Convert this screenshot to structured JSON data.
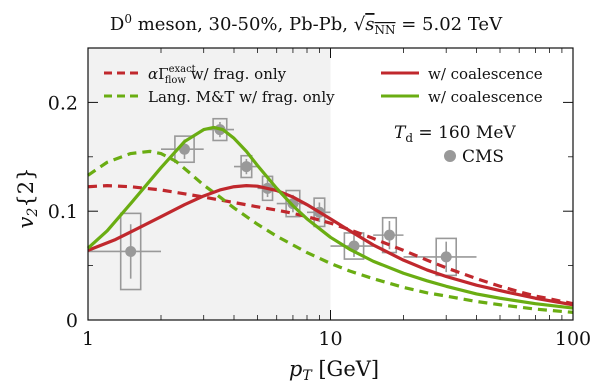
{
  "chart_data": {
    "type": "line",
    "title": "D⁰ meson, 30-50%, Pb-Pb, √sNN = 5.02 TeV",
    "title_parts": {
      "species": "D",
      "species_sup": "0",
      "rest": " meson, 30-50%, Pb-Pb, ",
      "sqrt_sym": "√",
      "s_label": "s",
      "s_sub": "NN",
      "energy": " = 5.02 TeV"
    },
    "xlabel": "p",
    "xlabel_sub": "T",
    "xlabel_unit": " [GeV]",
    "ylabel": "v",
    "ylabel_sub": "2",
    "ylabel_rest": "{2}",
    "xscale": "log",
    "xlim": [
      1,
      100
    ],
    "ylim": [
      0,
      0.25
    ],
    "xticks": [
      {
        "value": 1,
        "label": "1"
      },
      {
        "value": 10,
        "label": "10"
      },
      {
        "value": 100,
        "label": "100"
      }
    ],
    "yticks": [
      {
        "value": 0,
        "label": "0"
      },
      {
        "value": 0.1,
        "label": "0.1"
      },
      {
        "value": 0.2,
        "label": "0.2"
      }
    ],
    "grid": false,
    "shaded_region": {
      "x": [
        1,
        10
      ],
      "color": "#f2f2f2"
    },
    "annotation": "T_d = 160 MeV",
    "annotation_parts": {
      "t": "T",
      "sub": "d",
      "rest": " = 160 MeV"
    },
    "legend": {
      "placement": "top",
      "entries": [
        {
          "series": 0,
          "prefix": "α",
          "Gamma": "Γ",
          "sup": "exact",
          "sub": "flow",
          "suffix": " w/ frag. only"
        },
        {
          "series": 1,
          "text": "Lang. M&T w/ frag. only"
        },
        {
          "series": 2,
          "text": "w/ coalescence"
        },
        {
          "series": 3,
          "text": "w/ coalescence"
        },
        {
          "series": 4,
          "text": "CMS"
        }
      ]
    },
    "colors": {
      "red": "#c0282d",
      "green": "#6aad12",
      "data": "#999999"
    },
    "series": [
      {
        "name": "αΓ^exact_flow w/ frag. only",
        "style": "dashed",
        "color": "#c0282d",
        "x": [
          1,
          1.2,
          1.5,
          2,
          2.5,
          3,
          4,
          5,
          6,
          7,
          8,
          10,
          12,
          15,
          20,
          25,
          30,
          40,
          50,
          60,
          70,
          80,
          100
        ],
        "y": [
          0.1225,
          0.1235,
          0.1225,
          0.1195,
          0.116,
          0.113,
          0.108,
          0.104,
          0.101,
          0.098,
          0.095,
          0.089,
          0.083,
          0.075,
          0.064,
          0.055,
          0.048,
          0.038,
          0.031,
          0.026,
          0.022,
          0.0195,
          0.015
        ]
      },
      {
        "name": "Lang. M&T w/ frag. only",
        "style": "dashed",
        "color": "#6aad12",
        "x": [
          1,
          1.2,
          1.5,
          1.8,
          2,
          2.3,
          2.6,
          3,
          3.5,
          4,
          5,
          6,
          8,
          10,
          12,
          15,
          20,
          25,
          30,
          40,
          50,
          70,
          100
        ],
        "y": [
          0.133,
          0.145,
          0.153,
          0.155,
          0.153,
          0.146,
          0.136,
          0.124,
          0.113,
          0.103,
          0.088,
          0.077,
          0.062,
          0.052,
          0.045,
          0.038,
          0.03,
          0.025,
          0.022,
          0.017,
          0.014,
          0.01,
          0.007
        ]
      },
      {
        "name": "w/ coalescence (red)",
        "style": "solid",
        "color": "#c0282d",
        "x": [
          1,
          1.3,
          1.6,
          2,
          2.5,
          3,
          3.5,
          4,
          4.5,
          5,
          6,
          7,
          8,
          10,
          12,
          15,
          20,
          25,
          30,
          40,
          50,
          70,
          100
        ],
        "y": [
          0.064,
          0.074,
          0.084,
          0.095,
          0.106,
          0.114,
          0.1195,
          0.1225,
          0.1235,
          0.123,
          0.119,
          0.113,
          0.106,
          0.093,
          0.082,
          0.069,
          0.055,
          0.046,
          0.04,
          0.032,
          0.027,
          0.02,
          0.014
        ]
      },
      {
        "name": "w/ coalescence (green)",
        "style": "solid",
        "color": "#6aad12",
        "x": [
          1,
          1.2,
          1.5,
          2,
          2.5,
          3,
          3.3,
          3.6,
          4,
          4.5,
          5,
          6,
          7,
          8,
          10,
          12,
          15,
          20,
          25,
          30,
          40,
          50,
          70,
          100
        ],
        "y": [
          0.066,
          0.082,
          0.107,
          0.14,
          0.164,
          0.175,
          0.177,
          0.175,
          0.167,
          0.155,
          0.142,
          0.121,
          0.105,
          0.093,
          0.076,
          0.065,
          0.054,
          0.043,
          0.036,
          0.031,
          0.024,
          0.02,
          0.015,
          0.011
        ]
      }
    ],
    "cms_data": {
      "name": "CMS",
      "points": [
        {
          "x": 1.5,
          "y": 0.063,
          "xlo": 1.0,
          "xhi": 2.0,
          "err": 0.025,
          "sys": 0.035
        },
        {
          "x": 2.5,
          "y": 0.157,
          "xlo": 2.0,
          "xhi": 3.0,
          "err": 0.009,
          "sys": 0.012
        },
        {
          "x": 3.5,
          "y": 0.175,
          "xlo": 3.0,
          "xhi": 4.0,
          "err": 0.007,
          "sys": 0.01
        },
        {
          "x": 4.5,
          "y": 0.141,
          "xlo": 4.0,
          "xhi": 5.0,
          "err": 0.007,
          "sys": 0.01
        },
        {
          "x": 5.5,
          "y": 0.121,
          "xlo": 5.0,
          "xhi": 6.0,
          "err": 0.008,
          "sys": 0.011
        },
        {
          "x": 7.0,
          "y": 0.107,
          "xlo": 6.0,
          "xhi": 8.0,
          "err": 0.008,
          "sys": 0.012
        },
        {
          "x": 9.0,
          "y": 0.099,
          "xlo": 8.0,
          "xhi": 10.0,
          "err": 0.009,
          "sys": 0.013
        },
        {
          "x": 12.5,
          "y": 0.068,
          "xlo": 10.0,
          "xhi": 15.0,
          "err": 0.01,
          "sys": 0.012
        },
        {
          "x": 17.5,
          "y": 0.078,
          "xlo": 15.0,
          "xhi": 20.0,
          "err": 0.013,
          "sys": 0.016
        },
        {
          "x": 30.0,
          "y": 0.058,
          "xlo": 20.0,
          "xhi": 40.0,
          "err": 0.014,
          "sys": 0.017
        }
      ]
    }
  }
}
